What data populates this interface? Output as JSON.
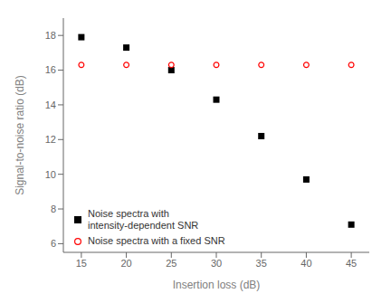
{
  "chart_data": {
    "type": "scatter",
    "xlabel": "Insertion loss (dB)",
    "ylabel": "Signal-to-noise ratio (dB)",
    "xlim": [
      13,
      47
    ],
    "ylim": [
      5.5,
      19
    ],
    "xticks": [
      15,
      20,
      25,
      30,
      35,
      40,
      45
    ],
    "yticks": [
      6,
      8,
      10,
      12,
      14,
      16,
      18
    ],
    "grid": false,
    "legend": "lower left",
    "series": [
      {
        "name": "Noise spectra with\nintensity-dependent SNR",
        "color": "#000000",
        "marker": "square",
        "x": [
          15,
          20,
          25,
          30,
          35,
          40,
          45
        ],
        "values": [
          17.9,
          17.3,
          16.0,
          14.3,
          12.2,
          9.7,
          7.1
        ]
      },
      {
        "name": "Noise spectra with a fixed SNR",
        "color": "#ff0000",
        "marker": "open circle",
        "x": [
          15,
          20,
          25,
          30,
          35,
          40,
          45
        ],
        "values": [
          16.3,
          16.3,
          16.3,
          16.3,
          16.3,
          16.3,
          16.3
        ]
      }
    ]
  }
}
